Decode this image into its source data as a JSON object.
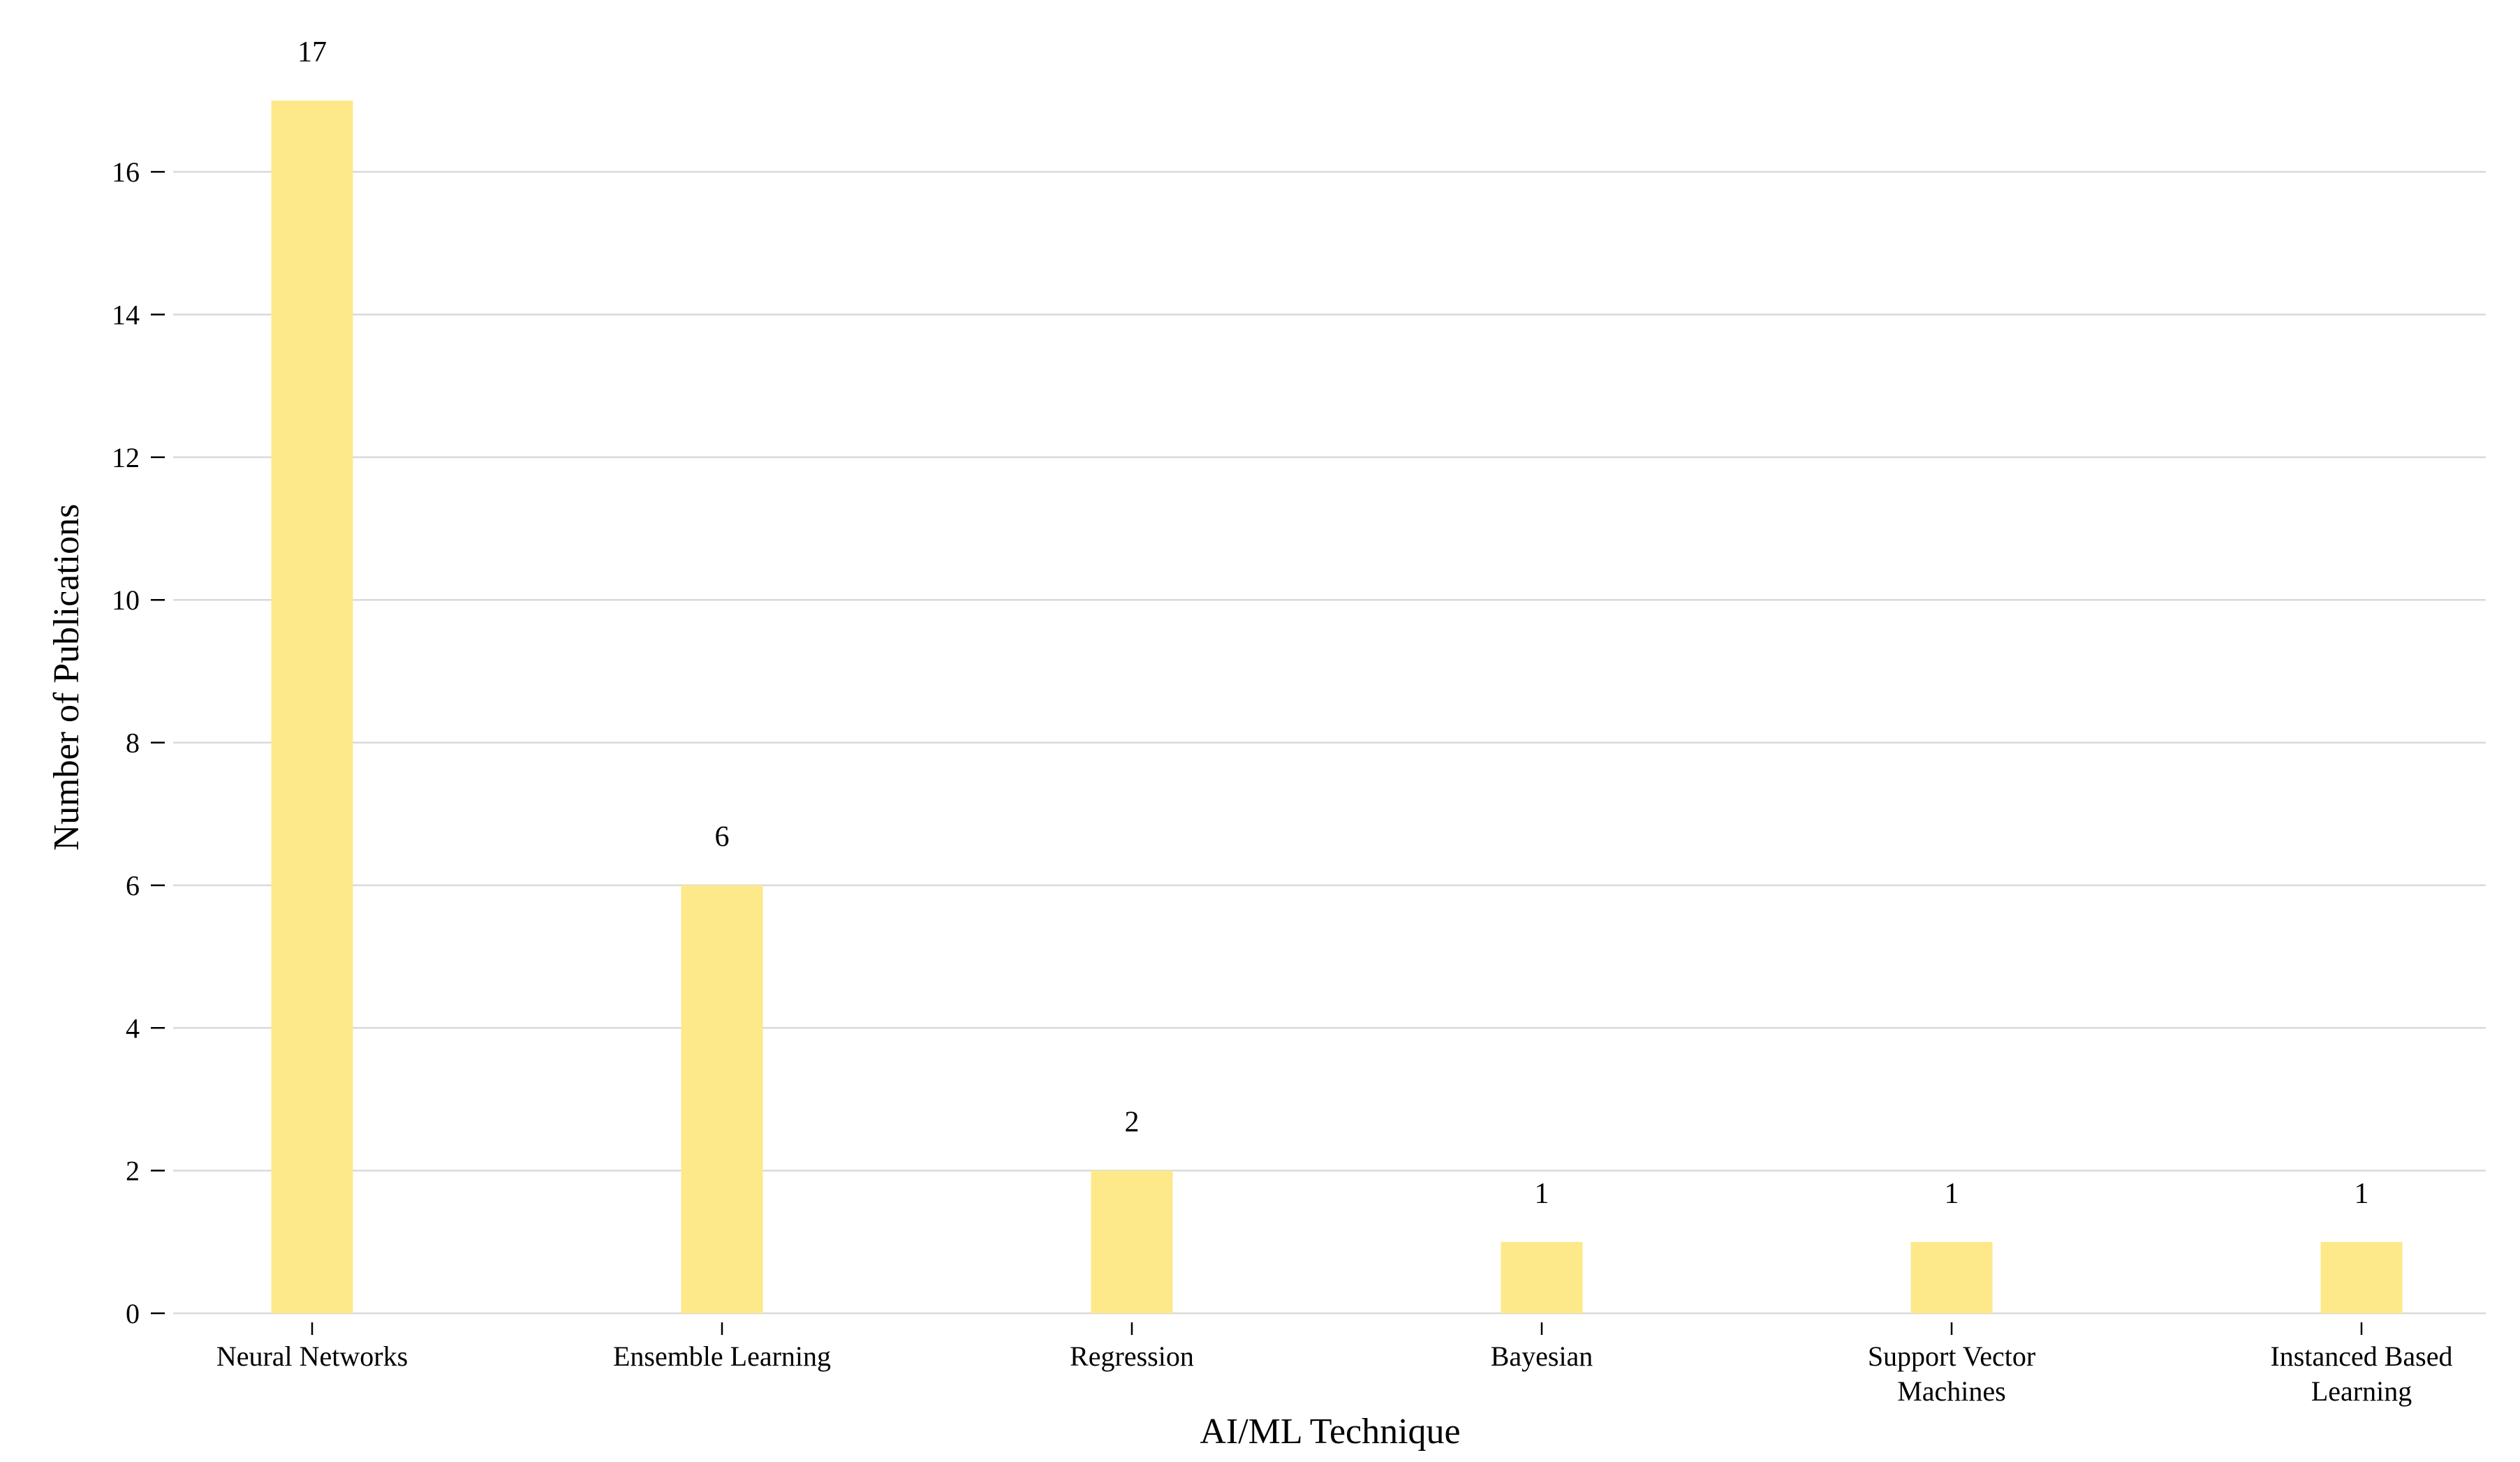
{
  "chart_data": {
    "type": "bar",
    "categories": [
      "Neural Networks",
      "Ensemble Learning",
      "Regression",
      "Bayesian",
      "Support Vector Machines",
      "Instanced Based Learning"
    ],
    "category_lines": [
      [
        "Neural Networks"
      ],
      [
        "Ensemble Learning"
      ],
      [
        "Regression"
      ],
      [
        "Bayesian"
      ],
      [
        "Support Vector",
        "Machines"
      ],
      [
        "Instanced Based",
        "Learning"
      ]
    ],
    "values": [
      17,
      6,
      2,
      1,
      1,
      1
    ],
    "value_labels": [
      "17",
      "6",
      "2",
      "1",
      "1",
      "1"
    ],
    "xlabel": "AI/ML Technique",
    "ylabel": "Number of Publications",
    "ylim": [
      0,
      17
    ],
    "yticks": [
      0,
      2,
      4,
      6,
      8,
      10,
      12,
      14,
      16
    ],
    "grid": "horizontal",
    "bar_color": "#fde98a",
    "grid_color": "#d9d9d9"
  }
}
